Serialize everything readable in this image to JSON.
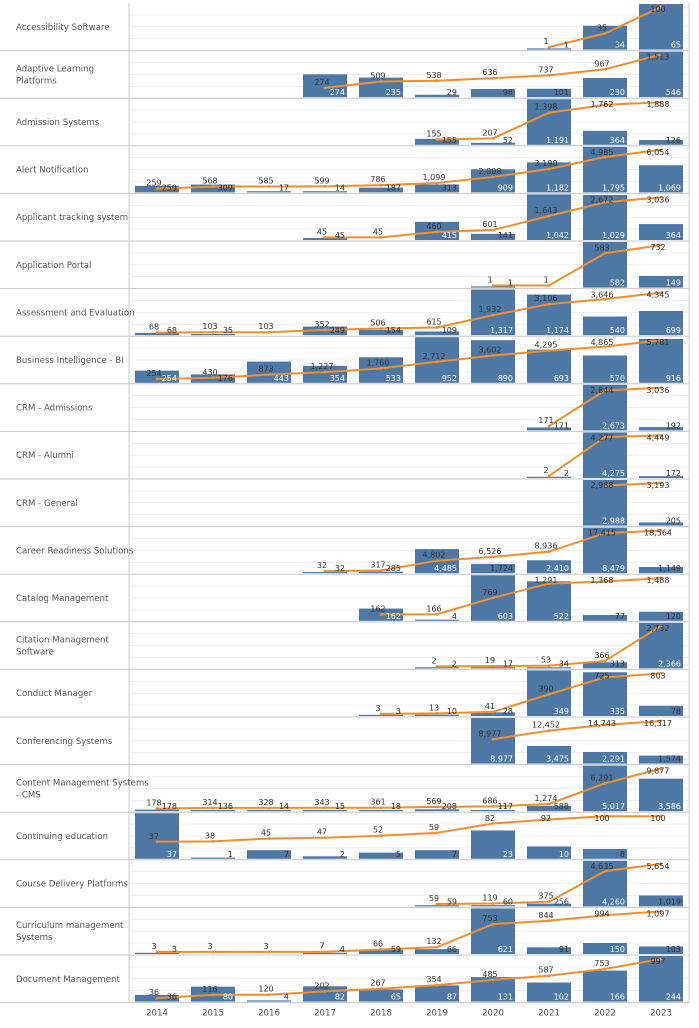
{
  "colors": {
    "bar": "#4e79a7",
    "line": "#f28e2b",
    "divider": "#c8c8c8",
    "grid": "#e6e6e6",
    "label": "#555555"
  },
  "chart_data": {
    "type": "bar",
    "note_series": "values = bar height (new in year), line = cumulative total",
    "categories": [
      "2014",
      "2015",
      "2016",
      "2017",
      "2018",
      "2019",
      "2020",
      "2021",
      "2022",
      "2023"
    ],
    "series": [
      {
        "name": "Accessibility Software",
        "bars": [
          null,
          null,
          null,
          null,
          null,
          null,
          null,
          1,
          34,
          65
        ],
        "line": [
          null,
          null,
          null,
          null,
          null,
          null,
          null,
          1,
          35,
          100
        ],
        "line_labels": [
          null,
          null,
          null,
          null,
          null,
          null,
          null,
          "1",
          "35",
          "100"
        ],
        "bar_labels": [
          null,
          null,
          null,
          null,
          null,
          null,
          null,
          "1",
          "34",
          "65"
        ]
      },
      {
        "name": "Adaptive Learning Platforms",
        "bars": [
          null,
          null,
          null,
          274,
          235,
          29,
          98,
          101,
          230,
          546
        ],
        "line": [
          null,
          null,
          null,
          274,
          509,
          538,
          636,
          737,
          967,
          1513
        ],
        "line_labels": [
          null,
          null,
          null,
          "274",
          "509",
          "538",
          "636",
          "737",
          "967",
          "1,513"
        ],
        "bar_labels": [
          null,
          null,
          null,
          "274",
          "235",
          "29",
          "98",
          "101",
          "230",
          "546"
        ]
      },
      {
        "name": "Admission Systems",
        "bars": [
          null,
          null,
          null,
          null,
          null,
          155,
          52,
          1191,
          364,
          126
        ],
        "line": [
          null,
          null,
          null,
          null,
          null,
          155,
          207,
          1398,
          1762,
          1888
        ],
        "line_labels": [
          null,
          null,
          null,
          null,
          null,
          "155",
          "207",
          "1,398",
          "1,762",
          "1,888"
        ],
        "bar_labels": [
          null,
          null,
          null,
          null,
          null,
          "155",
          "52",
          "1,191",
          "364",
          "126"
        ]
      },
      {
        "name": "Alert Notification",
        "bars": [
          259,
          309,
          17,
          14,
          187,
          313,
          909,
          1182,
          1795,
          1069
        ],
        "line": [
          259,
          568,
          585,
          599,
          786,
          1099,
          2008,
          3190,
          4985,
          6054
        ],
        "line_labels": [
          "259",
          "568",
          "585",
          "599",
          "786",
          "1,099",
          "2,008",
          "3,190",
          "4,985",
          "6,054"
        ],
        "bar_labels": [
          "259",
          "309",
          "17",
          "14",
          "187",
          "313",
          "909",
          "1,182",
          "1,795",
          "1,069"
        ]
      },
      {
        "name": "Applicant tracking system",
        "bars": [
          null,
          null,
          null,
          45,
          null,
          415,
          141,
          1042,
          1029,
          364
        ],
        "line": [
          null,
          null,
          null,
          45,
          45,
          460,
          601,
          1643,
          2672,
          3036
        ],
        "line_labels": [
          null,
          null,
          null,
          "45",
          "45",
          "460",
          "601",
          "1,643",
          "2,672",
          "3,036"
        ],
        "bar_labels": [
          null,
          null,
          null,
          "45",
          null,
          "415",
          "141",
          "1,042",
          "1,029",
          "364"
        ]
      },
      {
        "name": "Application Portal",
        "bars": [
          null,
          null,
          null,
          null,
          null,
          null,
          1,
          null,
          582,
          149
        ],
        "line": [
          null,
          null,
          null,
          null,
          null,
          null,
          1,
          1,
          583,
          732
        ],
        "line_labels": [
          null,
          null,
          null,
          null,
          null,
          null,
          "1",
          "1",
          "583",
          "732"
        ],
        "bar_labels": [
          null,
          null,
          null,
          null,
          null,
          null,
          "1",
          null,
          "582",
          "149"
        ]
      },
      {
        "name": "Assessment and Evaluation",
        "bars": [
          68,
          35,
          null,
          249,
          154,
          109,
          1317,
          1174,
          540,
          699
        ],
        "line": [
          68,
          103,
          103,
          352,
          506,
          615,
          1932,
          3106,
          3646,
          4345
        ],
        "line_labels": [
          "68",
          "103",
          "103",
          "352",
          "506",
          "615",
          "1,932",
          "3,106",
          "3,646",
          "4,345"
        ],
        "bar_labels": [
          "68",
          "35",
          null,
          "249",
          "154",
          "109",
          "1,317",
          "1,174",
          "540",
          "699"
        ]
      },
      {
        "name": "Business Intelligence - BI",
        "bars": [
          254,
          176,
          443,
          354,
          533,
          952,
          890,
          693,
          570,
          916
        ],
        "line": [
          254,
          430,
          873,
          1227,
          1760,
          2712,
          3602,
          4295,
          4865,
          5781
        ],
        "line_labels": [
          "254",
          "430",
          "873",
          "1,227",
          "1,760",
          "2,712",
          "3,602",
          "4,295",
          "4,865",
          "5,781"
        ],
        "bar_labels": [
          "254",
          "176",
          "443",
          "354",
          "533",
          "952",
          "890",
          "693",
          "570",
          "916"
        ]
      },
      {
        "name": "CRM - Admissions",
        "bars": [
          null,
          null,
          null,
          null,
          null,
          null,
          null,
          171,
          2673,
          192
        ],
        "line": [
          null,
          null,
          null,
          null,
          null,
          null,
          null,
          171,
          2844,
          3036
        ],
        "line_labels": [
          null,
          null,
          null,
          null,
          null,
          null,
          null,
          "171",
          "2,844",
          "3,036"
        ],
        "bar_labels": [
          null,
          null,
          null,
          null,
          null,
          null,
          null,
          "171",
          "2,673",
          "192"
        ]
      },
      {
        "name": "CRM - Alumni",
        "bars": [
          null,
          null,
          null,
          null,
          null,
          null,
          null,
          2,
          4275,
          172
        ],
        "line": [
          null,
          null,
          null,
          null,
          null,
          null,
          null,
          2,
          4277,
          4449
        ],
        "line_labels": [
          null,
          null,
          null,
          null,
          null,
          null,
          null,
          "2",
          "4,277",
          "4,449"
        ],
        "bar_labels": [
          null,
          null,
          null,
          null,
          null,
          null,
          null,
          "2",
          "4,275",
          "172"
        ]
      },
      {
        "name": "CRM - General",
        "bars": [
          null,
          null,
          null,
          null,
          null,
          null,
          null,
          null,
          2988,
          205
        ],
        "line": [
          null,
          null,
          null,
          null,
          null,
          null,
          null,
          null,
          2988,
          3193
        ],
        "line_labels": [
          null,
          null,
          null,
          null,
          null,
          null,
          null,
          null,
          "2,988",
          "3,193"
        ],
        "bar_labels": [
          null,
          null,
          null,
          null,
          null,
          null,
          null,
          null,
          "2,988",
          "205"
        ]
      },
      {
        "name": "Career Readiness Solutions",
        "bars": [
          null,
          null,
          null,
          32,
          285,
          4485,
          1724,
          2410,
          8479,
          1149
        ],
        "line": [
          null,
          null,
          null,
          32,
          317,
          4802,
          6526,
          8936,
          17415,
          18564
        ],
        "line_labels": [
          null,
          null,
          null,
          "32",
          "317",
          "4,802",
          "6,526",
          "8,936",
          "17,415",
          "18,564"
        ],
        "bar_labels": [
          null,
          null,
          null,
          "32",
          "285",
          "4,485",
          "1,724",
          "2,410",
          "8,479",
          "1,149"
        ]
      },
      {
        "name": "Catalog Management",
        "bars": [
          null,
          null,
          null,
          null,
          162,
          4,
          603,
          522,
          77,
          120
        ],
        "line": [
          null,
          null,
          null,
          null,
          162,
          166,
          769,
          1291,
          1368,
          1488
        ],
        "line_labels": [
          null,
          null,
          null,
          null,
          "162",
          "166",
          "769",
          "1,291",
          "1,368",
          "1,488"
        ],
        "bar_labels": [
          null,
          null,
          null,
          null,
          "162",
          "4",
          "603",
          "522",
          "77",
          "120"
        ]
      },
      {
        "name": "Citation Management Software",
        "bars": [
          null,
          null,
          null,
          null,
          null,
          2,
          17,
          34,
          313,
          2366
        ],
        "line": [
          null,
          null,
          null,
          null,
          null,
          2,
          19,
          53,
          366,
          2732
        ],
        "line_labels": [
          null,
          null,
          null,
          null,
          null,
          "2",
          "19",
          "53",
          "366",
          "2,732"
        ],
        "bar_labels": [
          null,
          null,
          null,
          null,
          null,
          "2",
          "17",
          "34",
          "313",
          "2,366"
        ]
      },
      {
        "name": "Conduct Manager",
        "bars": [
          null,
          null,
          null,
          null,
          3,
          10,
          28,
          349,
          335,
          78
        ],
        "line": [
          null,
          null,
          null,
          null,
          3,
          13,
          41,
          390,
          725,
          803
        ],
        "line_labels": [
          null,
          null,
          null,
          null,
          "3",
          "13",
          "41",
          "390",
          "725",
          "803"
        ],
        "bar_labels": [
          null,
          null,
          null,
          null,
          "3",
          "10",
          "28",
          "349",
          "335",
          "78"
        ]
      },
      {
        "name": "Conferencing Systems",
        "bars": [
          null,
          null,
          null,
          null,
          null,
          null,
          8977,
          3475,
          2291,
          1574
        ],
        "line": [
          null,
          null,
          null,
          null,
          null,
          null,
          8977,
          12452,
          14743,
          16317
        ],
        "line_labels": [
          null,
          null,
          null,
          null,
          null,
          null,
          "8,977",
          "12,452",
          "14,743",
          "16,317"
        ],
        "bar_labels": [
          null,
          null,
          null,
          null,
          null,
          null,
          "8,977",
          "3,475",
          "2,291",
          "1,574"
        ]
      },
      {
        "name": "Content Management Systems - CMS",
        "bars": [
          178,
          136,
          14,
          15,
          18,
          208,
          117,
          588,
          5017,
          3586
        ],
        "line": [
          178,
          314,
          328,
          343,
          361,
          569,
          686,
          1274,
          6291,
          9877
        ],
        "line_labels": [
          "178",
          "314",
          "328",
          "343",
          "361",
          "569",
          "686",
          "1,274",
          "6,291",
          "9,877"
        ],
        "bar_labels": [
          "178",
          "136",
          "14",
          "15",
          "18",
          "208",
          "117",
          "588",
          "5,017",
          "3,586"
        ]
      },
      {
        "name": "Continuing education",
        "bars": [
          37,
          1,
          7,
          2,
          5,
          7,
          23,
          10,
          8,
          null
        ],
        "line": [
          37,
          38,
          45,
          47,
          52,
          59,
          82,
          92,
          100,
          100
        ],
        "line_labels": [
          "37",
          "38",
          "45",
          "47",
          "52",
          "59",
          "82",
          "92",
          "100",
          "100"
        ],
        "bar_labels": [
          "37",
          "1",
          "7",
          "2",
          "5",
          "7",
          "23",
          "10",
          "8",
          null
        ]
      },
      {
        "name": "Course Delivery Platforms",
        "bars": [
          null,
          null,
          null,
          null,
          null,
          59,
          60,
          256,
          4260,
          1019
        ],
        "line": [
          null,
          null,
          null,
          null,
          null,
          59,
          119,
          375,
          4635,
          5654
        ],
        "line_labels": [
          null,
          null,
          null,
          null,
          null,
          "59",
          "119",
          "375",
          "4,635",
          "5,654"
        ],
        "bar_labels": [
          null,
          null,
          null,
          null,
          null,
          "59",
          "60",
          "256",
          "4,260",
          "1,019"
        ]
      },
      {
        "name": "Curriculum management Systems",
        "bars": [
          3,
          null,
          null,
          4,
          59,
          66,
          621,
          91,
          150,
          103
        ],
        "line": [
          3,
          3,
          3,
          7,
          66,
          132,
          753,
          844,
          994,
          1097
        ],
        "line_labels": [
          "3",
          "3",
          "3",
          "7",
          "66",
          "132",
          "753",
          "844",
          "994",
          "1,097"
        ],
        "bar_labels": [
          "3",
          null,
          null,
          "4",
          "59",
          "66",
          "621",
          "91",
          "150",
          "103"
        ]
      },
      {
        "name": "Document Management",
        "bars": [
          36,
          80,
          4,
          82,
          65,
          87,
          131,
          102,
          166,
          244
        ],
        "line": [
          36,
          116,
          120,
          202,
          267,
          354,
          485,
          587,
          753,
          997
        ],
        "line_labels": [
          "36",
          "116",
          "120",
          "202",
          "267",
          "354",
          "485",
          "587",
          "753",
          "997"
        ],
        "bar_labels": [
          "36",
          "80",
          "4",
          "82",
          "65",
          "87",
          "131",
          "102",
          "166",
          "244"
        ]
      }
    ]
  }
}
